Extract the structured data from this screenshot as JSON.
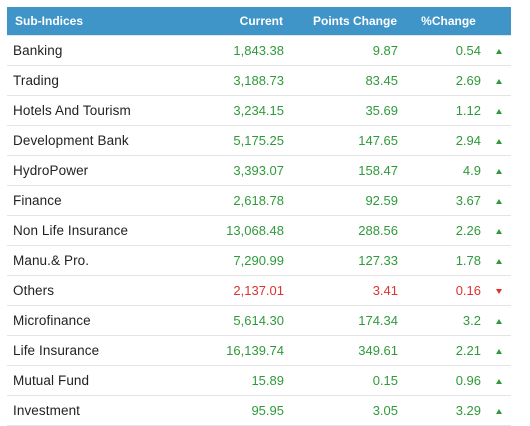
{
  "table": {
    "headers": {
      "name": "Sub-Indices",
      "current": "Current",
      "points": "Points Change",
      "pct": "%Change"
    },
    "rows": [
      {
        "name": "Banking",
        "current": "1,843.38",
        "points": "9.87",
        "pct": "0.54",
        "direction": "up"
      },
      {
        "name": "Trading",
        "current": "3,188.73",
        "points": "83.45",
        "pct": "2.69",
        "direction": "up"
      },
      {
        "name": "Hotels And Tourism",
        "current": "3,234.15",
        "points": "35.69",
        "pct": "1.12",
        "direction": "up"
      },
      {
        "name": "Development Bank",
        "current": "5,175.25",
        "points": "147.65",
        "pct": "2.94",
        "direction": "up"
      },
      {
        "name": "HydroPower",
        "current": "3,393.07",
        "points": "158.47",
        "pct": "4.9",
        "direction": "up"
      },
      {
        "name": "Finance",
        "current": "2,618.78",
        "points": "92.59",
        "pct": "3.67",
        "direction": "up"
      },
      {
        "name": "Non Life Insurance",
        "current": "13,068.48",
        "points": "288.56",
        "pct": "2.26",
        "direction": "up"
      },
      {
        "name": "Manu.& Pro.",
        "current": "7,290.99",
        "points": "127.33",
        "pct": "1.78",
        "direction": "up"
      },
      {
        "name": "Others",
        "current": "2,137.01",
        "points": "3.41",
        "pct": "0.16",
        "direction": "down"
      },
      {
        "name": "Microfinance",
        "current": "5,614.30",
        "points": "174.34",
        "pct": "3.2",
        "direction": "up"
      },
      {
        "name": "Life Insurance",
        "current": "16,139.74",
        "points": "349.61",
        "pct": "2.21",
        "direction": "up"
      },
      {
        "name": "Mutual Fund",
        "current": "15.89",
        "points": "0.15",
        "pct": "0.96",
        "direction": "up"
      },
      {
        "name": "Investment",
        "current": "95.95",
        "points": "3.05",
        "pct": "3.29",
        "direction": "up"
      }
    ]
  },
  "colors": {
    "header_bg": "#3f94c8",
    "positive": "#2f9a3a",
    "negative": "#e0312d"
  },
  "icons": {
    "up": "triangle-up-icon",
    "down": "triangle-down-icon"
  }
}
